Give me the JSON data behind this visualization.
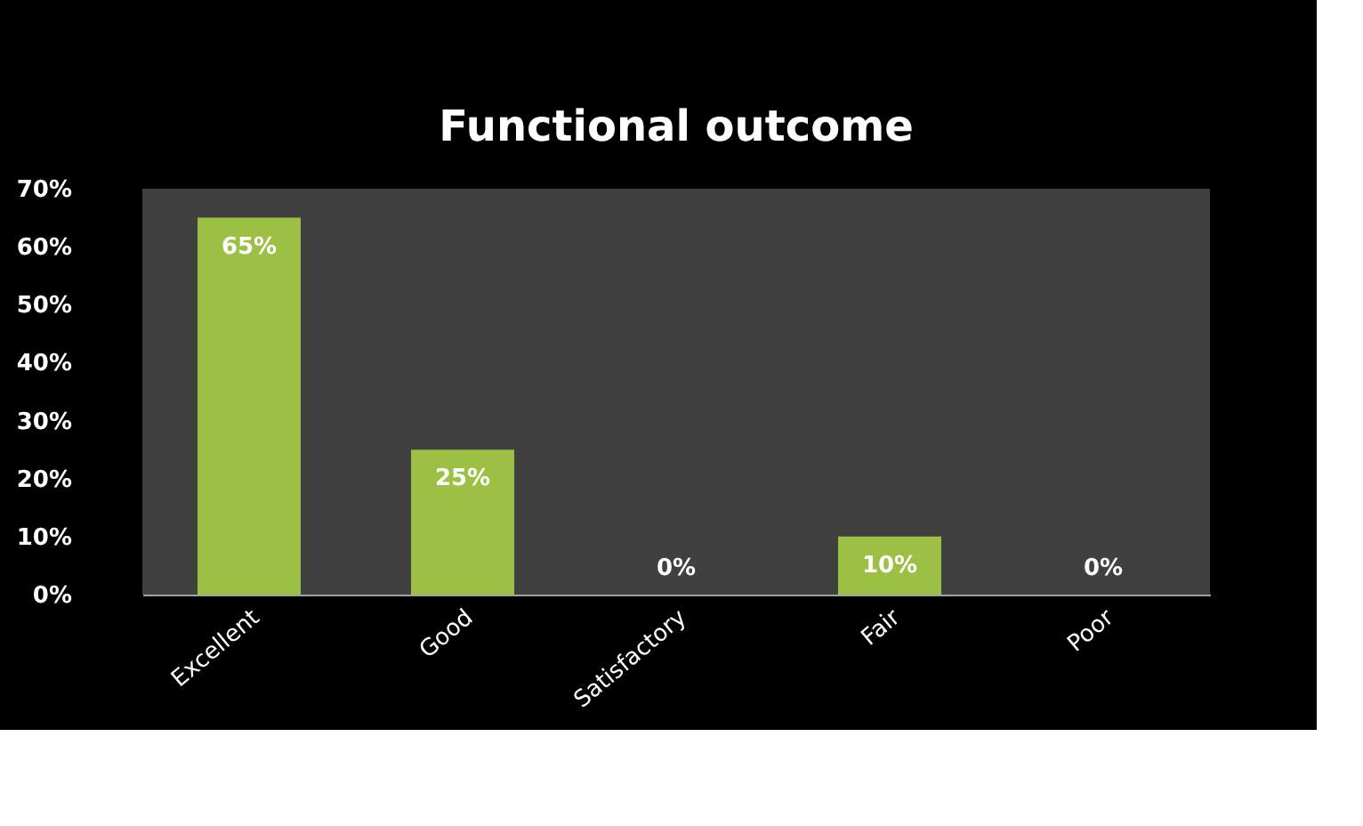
{
  "chart_data": {
    "type": "bar",
    "title": "Functional outcome",
    "categories": [
      "Excellent",
      "Good",
      "Satisfactory",
      "Fair",
      "Poor"
    ],
    "values": [
      65,
      25,
      0,
      10,
      0
    ],
    "value_labels": [
      "65%",
      "25%",
      "0%",
      "10%",
      "0%"
    ],
    "color": "#9bc043",
    "ylim": [
      0,
      70
    ],
    "yticks": [
      {
        "value": 0,
        "label": "0%"
      },
      {
        "value": 10,
        "label": "10%"
      },
      {
        "value": 20,
        "label": "20%"
      },
      {
        "value": 30,
        "label": "30%"
      },
      {
        "value": 40,
        "label": "40%"
      },
      {
        "value": 50,
        "label": "50%"
      },
      {
        "value": 60,
        "label": "60%"
      },
      {
        "value": 70,
        "label": "70%"
      }
    ],
    "grid": false
  }
}
